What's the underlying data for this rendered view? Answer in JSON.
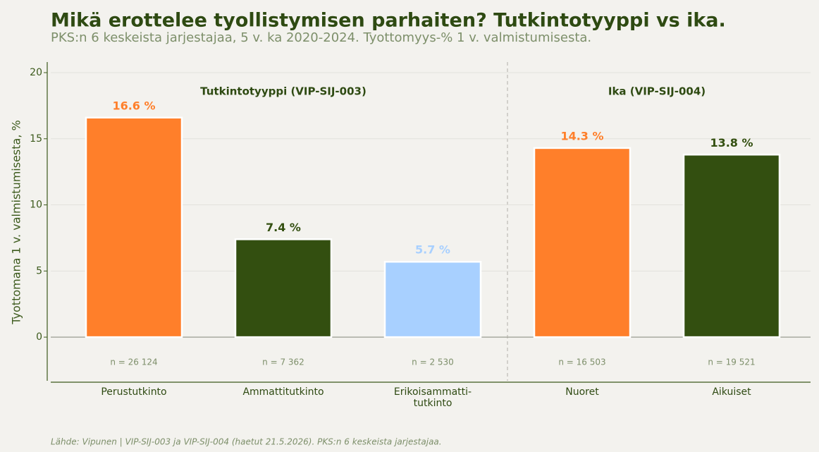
{
  "chart_data": {
    "type": "bar",
    "title": "Mikä erottelee tyollistymisen parhaiten? Tutkintotyyppi vs ika.",
    "subtitle": "PKS:n 6 keskeista jarjestajaa, 5 v. ka 2020-2024. Tyottomyys-% 1 v. valmistumisesta.",
    "y_label": "Tyottomana 1 v. valmistumisesta, %",
    "categories": [
      "Perustutkinto",
      "Ammattitutkinto",
      "Erikoisammatti-\ntutkinto",
      "Nuoret",
      "Aikuiset"
    ],
    "values": [
      16.6,
      7.4,
      5.7,
      14.3,
      13.8
    ],
    "value_labels": [
      "16.6 %",
      "7.4 %",
      "5.7 %",
      "14.3 %",
      "13.8 %"
    ],
    "colors": [
      "#ff7f2a",
      "#334f10",
      "#a8d0ff",
      "#ff7f2a",
      "#334f10"
    ],
    "n_labels": [
      "n = 26 124",
      "n = 7 362",
      "n = 2 530",
      "n = 16 503",
      "n = 19 521"
    ],
    "groups": [
      "Tutkintotyyppi (VIP-SIJ-003)",
      "Ika (VIP-SIJ-004)"
    ],
    "ylim": [
      -3.3,
      20.8
    ],
    "yticks": [
      0,
      5,
      10,
      15,
      20
    ],
    "grid": true,
    "source": "Lähde: Vipunen | VIP-SIJ-003 ja VIP-SIJ-004 (haetut 21.5.2026). PKS:n 6 keskeista jarjestajaa."
  }
}
